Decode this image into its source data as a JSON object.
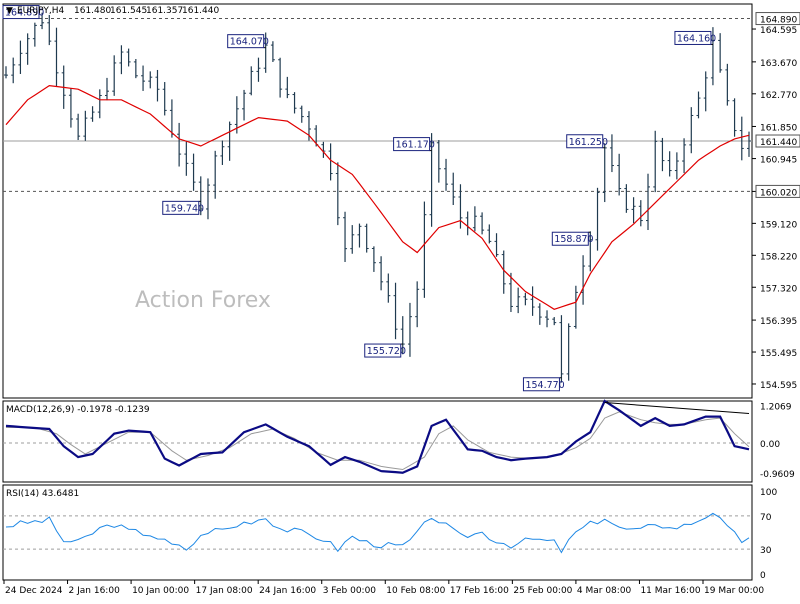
{
  "header": {
    "symbol": "EURJPY,H4",
    "open": "161.480",
    "high": "161.545",
    "low": "161.357",
    "close": "161.440"
  },
  "watermark": "Action Forex",
  "chart_data": [
    {
      "type": "ohlc",
      "title": "EURJPY,H4 161.480 161.545 161.357 161.440",
      "ylim": [
        154.2,
        165.3
      ],
      "y_ticks": [
        "164.595",
        "163.670",
        "162.770",
        "161.850",
        "160.945",
        "160.020",
        "159.120",
        "158.220",
        "157.320",
        "156.395",
        "155.495",
        "154.595"
      ],
      "x_ticks": [
        "24 Dec 2024",
        "2 Jan 16:00",
        "10 Jan 00:00",
        "17 Jan 08:00",
        "24 Jan 16:00",
        "3 Feb 00:00",
        "10 Feb 08:00",
        "17 Feb 16:00",
        "25 Feb 00:00",
        "4 Mar 08:00",
        "11 Mar 16:00",
        "19 Mar 00:00"
      ],
      "horizontal_levels": [
        {
          "value": 164.89,
          "label": "164.890",
          "style": "dashed"
        },
        {
          "value": 160.02,
          "label": "160.020",
          "style": "dashed"
        },
        {
          "value": 161.44,
          "label": "161.440",
          "style": "solid"
        }
      ],
      "annotations": [
        {
          "label": "164.890",
          "value": 164.89
        },
        {
          "label": "164.070",
          "value": 164.07
        },
        {
          "label": "159.740",
          "value": 159.74
        },
        {
          "label": "161.170",
          "value": 161.17
        },
        {
          "label": "155.720",
          "value": 155.72
        },
        {
          "label": "154.770",
          "value": 154.77
        },
        {
          "label": "161.250",
          "value": 161.25
        },
        {
          "label": "158.870",
          "value": 158.87
        },
        {
          "label": "164.160",
          "value": 164.16
        }
      ],
      "series": [
        {
          "kind": "price",
          "anchors": [
            [
              0,
              163.3
            ],
            [
              2,
              164.1
            ],
            [
              5,
              164.89
            ],
            [
              8,
              162.9
            ],
            [
              10,
              161.5
            ],
            [
              13,
              162.6
            ],
            [
              16,
              163.9
            ],
            [
              18,
              163.3
            ],
            [
              21,
              162.9
            ],
            [
              25,
              160.6
            ],
            [
              27,
              159.74
            ],
            [
              30,
              161.5
            ],
            [
              33,
              162.8
            ],
            [
              36,
              164.07
            ],
            [
              39,
              162.6
            ],
            [
              42,
              161.9
            ],
            [
              45,
              160.7
            ],
            [
              47,
              158.3
            ],
            [
              49,
              159.1
            ],
            [
              51,
              158.1
            ],
            [
              53,
              156.9
            ],
            [
              55,
              155.72
            ],
            [
              57,
              157.3
            ],
            [
              59,
              161.17
            ],
            [
              61,
              160.2
            ],
            [
              63,
              159.3
            ],
            [
              65,
              159.1
            ],
            [
              67,
              158.6
            ],
            [
              70,
              156.9
            ],
            [
              73,
              156.8
            ],
            [
              76,
              156.4
            ],
            [
              77,
              154.77
            ],
            [
              79,
              157.3
            ],
            [
              81,
              158.87
            ],
            [
              83,
              161.25
            ],
            [
              85,
              159.9
            ],
            [
              88,
              159.3
            ],
            [
              90,
              161.3
            ],
            [
              92,
              160.4
            ],
            [
              94,
              161.5
            ],
            [
              96,
              162.6
            ],
            [
              98,
              164.16
            ],
            [
              100,
              162.4
            ],
            [
              102,
              161.3
            ],
            [
              103,
              161.44
            ]
          ],
          "first_close": 163.3,
          "last_close": 161.44
        },
        {
          "kind": "moving_average",
          "color": "#e00000",
          "anchors": [
            [
              0,
              161.9
            ],
            [
              3,
              162.6
            ],
            [
              6,
              163.0
            ],
            [
              10,
              162.9
            ],
            [
              13,
              162.6
            ],
            [
              16,
              162.6
            ],
            [
              20,
              162.2
            ],
            [
              24,
              161.5
            ],
            [
              27,
              161.3
            ],
            [
              31,
              161.7
            ],
            [
              35,
              162.1
            ],
            [
              39,
              162.0
            ],
            [
              42,
              161.6
            ],
            [
              45,
              160.9
            ],
            [
              48,
              160.5
            ],
            [
              51,
              159.7
            ],
            [
              55,
              158.6
            ],
            [
              57,
              158.3
            ],
            [
              60,
              159.0
            ],
            [
              63,
              159.2
            ],
            [
              66,
              158.7
            ],
            [
              69,
              157.8
            ],
            [
              72,
              157.2
            ],
            [
              76,
              156.7
            ],
            [
              79,
              156.9
            ],
            [
              81,
              157.7
            ],
            [
              84,
              158.6
            ],
            [
              87,
              159.1
            ],
            [
              90,
              159.7
            ],
            [
              93,
              160.3
            ],
            [
              96,
              160.9
            ],
            [
              99,
              161.3
            ],
            [
              101,
              161.5
            ],
            [
              103,
              161.6
            ]
          ],
          "last_value": 161.6
        }
      ]
    },
    {
      "type": "line",
      "title": "MACD(12,26,9) -0.1978 -0.1239",
      "ylim": [
        -1.25,
        1.35
      ],
      "y_ticks": [
        "1.2069",
        "0.00",
        "-0.9609"
      ],
      "series": [
        {
          "name": "MACD",
          "color": "#0b0b84",
          "anchors": [
            [
              0,
              0.55
            ],
            [
              3,
              0.5
            ],
            [
              6,
              0.45
            ],
            [
              8,
              -0.1
            ],
            [
              10,
              -0.45
            ],
            [
              12,
              -0.35
            ],
            [
              15,
              0.3
            ],
            [
              17,
              0.4
            ],
            [
              20,
              0.35
            ],
            [
              22,
              -0.5
            ],
            [
              24,
              -0.72
            ],
            [
              27,
              -0.35
            ],
            [
              30,
              -0.3
            ],
            [
              33,
              0.35
            ],
            [
              36,
              0.6
            ],
            [
              39,
              0.2
            ],
            [
              42,
              -0.1
            ],
            [
              45,
              -0.7
            ],
            [
              47,
              -0.45
            ],
            [
              49,
              -0.6
            ],
            [
              52,
              -0.9
            ],
            [
              55,
              -0.95
            ],
            [
              57,
              -0.75
            ],
            [
              59,
              0.55
            ],
            [
              61,
              0.75
            ],
            [
              64,
              -0.2
            ],
            [
              66,
              -0.25
            ],
            [
              68,
              -0.45
            ],
            [
              70,
              -0.55
            ],
            [
              72,
              -0.5
            ],
            [
              75,
              -0.45
            ],
            [
              77,
              -0.35
            ],
            [
              79,
              0.05
            ],
            [
              81,
              0.35
            ],
            [
              83,
              1.35
            ],
            [
              85,
              1.05
            ],
            [
              88,
              0.55
            ],
            [
              90,
              0.8
            ],
            [
              92,
              0.55
            ],
            [
              94,
              0.6
            ],
            [
              97,
              0.85
            ],
            [
              99,
              0.85
            ],
            [
              101,
              -0.1
            ],
            [
              103,
              -0.2
            ]
          ],
          "last_value": -0.1978
        },
        {
          "name": "Signal",
          "color": "#9a9a9a",
          "anchors": [
            [
              0,
              0.5
            ],
            [
              4,
              0.5
            ],
            [
              7,
              0.3
            ],
            [
              9,
              -0.05
            ],
            [
              11,
              -0.35
            ],
            [
              14,
              0.0
            ],
            [
              17,
              0.35
            ],
            [
              20,
              0.35
            ],
            [
              23,
              -0.25
            ],
            [
              25,
              -0.55
            ],
            [
              28,
              -0.4
            ],
            [
              31,
              -0.15
            ],
            [
              34,
              0.3
            ],
            [
              37,
              0.45
            ],
            [
              40,
              0.15
            ],
            [
              43,
              -0.3
            ],
            [
              46,
              -0.55
            ],
            [
              49,
              -0.55
            ],
            [
              52,
              -0.75
            ],
            [
              55,
              -0.85
            ],
            [
              58,
              -0.45
            ],
            [
              60,
              0.3
            ],
            [
              62,
              0.55
            ],
            [
              64,
              0.1
            ],
            [
              67,
              -0.3
            ],
            [
              70,
              -0.45
            ],
            [
              73,
              -0.5
            ],
            [
              76,
              -0.42
            ],
            [
              79,
              -0.15
            ],
            [
              81,
              0.15
            ],
            [
              83,
              0.8
            ],
            [
              85,
              1.0
            ],
            [
              88,
              0.75
            ],
            [
              90,
              0.65
            ],
            [
              92,
              0.6
            ],
            [
              94,
              0.6
            ],
            [
              97,
              0.75
            ],
            [
              99,
              0.8
            ],
            [
              101,
              0.3
            ],
            [
              103,
              -0.12
            ]
          ],
          "last_value": -0.1239
        }
      ],
      "trendline": {
        "from": [
          83,
          1.3
        ],
        "to": [
          103,
          0.95
        ]
      }
    },
    {
      "type": "line",
      "title": "RSI(14) 43.6481",
      "ylim": [
        0,
        100
      ],
      "y_ticks": [
        "100",
        "70",
        "30",
        "0"
      ],
      "levels": [
        70,
        30
      ],
      "series": [
        {
          "name": "RSI",
          "color": "#1e88e5",
          "anchors": [
            [
              0,
              58
            ],
            [
              3,
              62
            ],
            [
              6,
              65
            ],
            [
              8,
              40
            ],
            [
              10,
              38
            ],
            [
              13,
              55
            ],
            [
              15,
              60
            ],
            [
              17,
              52
            ],
            [
              20,
              48
            ],
            [
              23,
              35
            ],
            [
              25,
              30
            ],
            [
              28,
              52
            ],
            [
              31,
              55
            ],
            [
              33,
              62
            ],
            [
              36,
              68
            ],
            [
              38,
              55
            ],
            [
              41,
              50
            ],
            [
              44,
              42
            ],
            [
              46,
              30
            ],
            [
              48,
              45
            ],
            [
              50,
              38
            ],
            [
              52,
              35
            ],
            [
              55,
              33
            ],
            [
              57,
              48
            ],
            [
              59,
              70
            ],
            [
              61,
              58
            ],
            [
              63,
              45
            ],
            [
              66,
              50
            ],
            [
              68,
              40
            ],
            [
              70,
              35
            ],
            [
              73,
              42
            ],
            [
              76,
              38
            ],
            [
              77,
              28
            ],
            [
              79,
              50
            ],
            [
              81,
              60
            ],
            [
              83,
              68
            ],
            [
              85,
              55
            ],
            [
              88,
              52
            ],
            [
              90,
              62
            ],
            [
              92,
              55
            ],
            [
              94,
              58
            ],
            [
              96,
              65
            ],
            [
              98,
              75
            ],
            [
              100,
              55
            ],
            [
              102,
              40
            ],
            [
              103,
              43.6481
            ]
          ],
          "last_value": 43.6481
        }
      ]
    }
  ]
}
